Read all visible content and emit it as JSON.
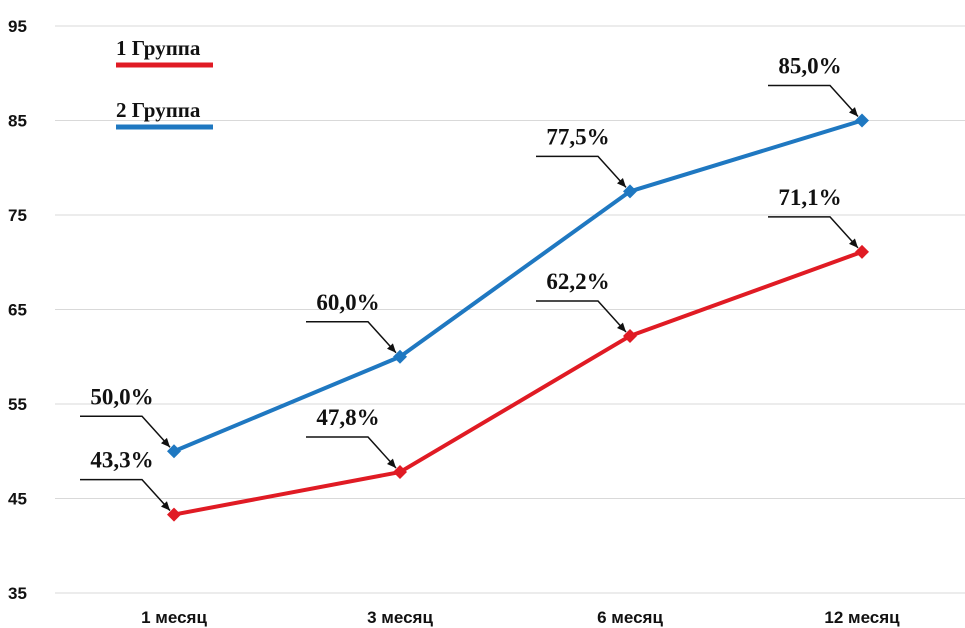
{
  "chart_data": {
    "type": "line",
    "title": "",
    "xlabel": "",
    "ylabel": "",
    "categories": [
      "1 месяц",
      "3 месяц",
      "6 месяц",
      "12 месяц"
    ],
    "ylim": [
      35,
      95
    ],
    "yticks": [
      35,
      45,
      55,
      65,
      75,
      85,
      95
    ],
    "grid": true,
    "legend_position": "top-left",
    "series": [
      {
        "name": "1 Группа",
        "color": "#e01b24",
        "values": [
          43.3,
          47.8,
          62.2,
          71.1
        ],
        "labels": [
          "43,3%",
          "47,8%",
          "62,2%",
          "71,1%"
        ]
      },
      {
        "name": "2 Группа",
        "color": "#1f78c1",
        "values": [
          50.0,
          60.0,
          77.5,
          85.0
        ],
        "labels": [
          "50,0%",
          "60,0%",
          "77,5%",
          "85,0%"
        ]
      }
    ]
  }
}
